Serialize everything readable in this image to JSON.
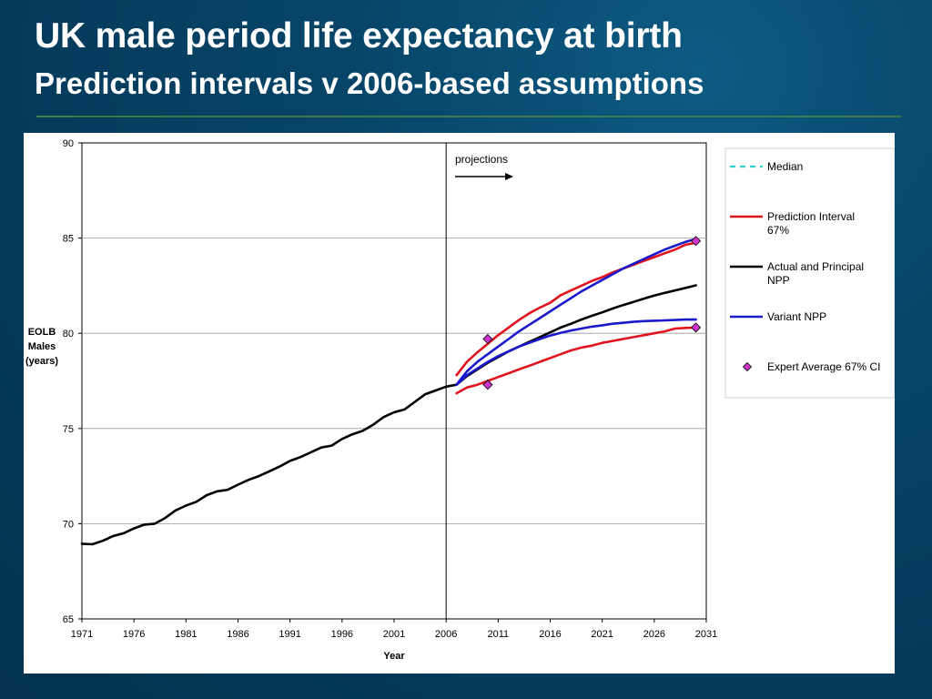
{
  "slide": {
    "title": "UK male period life expectancy at birth",
    "subtitle": "Prediction intervals v 2006-based assumptions"
  },
  "chart_data": {
    "type": "line",
    "xlabel": "Year",
    "ylabel": [
      "EOLB",
      "Males",
      "(years)"
    ],
    "xlim": [
      1971,
      2031
    ],
    "ylim": [
      65,
      90
    ],
    "x_ticks": [
      "1971",
      "1976",
      "1981",
      "1986",
      "1991",
      "1996",
      "2001",
      "2006",
      "2011",
      "2016",
      "2021",
      "2026",
      "2031"
    ],
    "y_ticks": [
      "65",
      "70",
      "75",
      "80",
      "85",
      "90"
    ],
    "grid": "horizontal",
    "divider_year": 2006,
    "annotation": "projections",
    "legend_position": "right",
    "legend": [
      {
        "label": "Median",
        "style": "dashed",
        "color": "#33cccc"
      },
      {
        "label": "Prediction Interval 67%",
        "style": "solid",
        "color": "#e0141e"
      },
      {
        "label": "Actual and Principal NPP",
        "style": "solid",
        "color": "#000000"
      },
      {
        "label": "Variant NPP",
        "style": "solid",
        "color": "#1a1acc"
      },
      {
        "label": "Expert Average 67% CI",
        "style": "marker",
        "color": "#cc33cc"
      }
    ],
    "series": [
      {
        "name": "Actual and Principal NPP",
        "color": "#000000",
        "x": [
          1971,
          1972,
          1973,
          1974,
          1975,
          1976,
          1977,
          1978,
          1979,
          1980,
          1981,
          1982,
          1983,
          1984,
          1985,
          1986,
          1987,
          1988,
          1989,
          1990,
          1991,
          1992,
          1993,
          1994,
          1995,
          1996,
          1997,
          1998,
          1999,
          2000,
          2001,
          2002,
          2003,
          2004,
          2005,
          2006,
          2007,
          2008,
          2009,
          2010,
          2011,
          2012,
          2013,
          2014,
          2015,
          2016,
          2017,
          2018,
          2019,
          2020,
          2021,
          2022,
          2023,
          2024,
          2025,
          2026,
          2027,
          2028,
          2029,
          2030
        ],
        "y": [
          68.95,
          68.92,
          69.1,
          69.35,
          69.5,
          69.75,
          69.95,
          70.0,
          70.3,
          70.7,
          70.95,
          71.15,
          71.5,
          71.7,
          71.78,
          72.05,
          72.3,
          72.5,
          72.75,
          73.0,
          73.3,
          73.5,
          73.75,
          74.0,
          74.1,
          74.45,
          74.7,
          74.88,
          75.2,
          75.6,
          75.85,
          76.0,
          76.4,
          76.8,
          77.0,
          77.2,
          77.3,
          77.75,
          78.1,
          78.45,
          78.75,
          79.05,
          79.3,
          79.55,
          79.8,
          80.05,
          80.3,
          80.5,
          80.72,
          80.92,
          81.1,
          81.3,
          81.48,
          81.65,
          81.82,
          81.98,
          82.12,
          82.25,
          82.38,
          82.52
        ]
      },
      {
        "name": "Prediction Interval 67% (upper)",
        "color": "#e0141e",
        "x": [
          2007,
          2008,
          2009,
          2010,
          2011,
          2012,
          2013,
          2014,
          2015,
          2016,
          2017,
          2018,
          2019,
          2020,
          2021,
          2022,
          2023,
          2024,
          2025,
          2026,
          2027,
          2028,
          2029,
          2030
        ],
        "y": [
          77.8,
          78.5,
          79.0,
          79.45,
          79.9,
          80.3,
          80.7,
          81.05,
          81.35,
          81.6,
          82.0,
          82.25,
          82.5,
          82.75,
          82.95,
          83.2,
          83.4,
          83.6,
          83.8,
          84.0,
          84.2,
          84.4,
          84.65,
          84.75
        ]
      },
      {
        "name": "Prediction Interval 67% (lower)",
        "color": "#e0141e",
        "x": [
          2007,
          2008,
          2009,
          2010,
          2011,
          2012,
          2013,
          2014,
          2015,
          2016,
          2017,
          2018,
          2019,
          2020,
          2021,
          2022,
          2023,
          2024,
          2025,
          2026,
          2027,
          2028,
          2029,
          2030
        ],
        "y": [
          76.85,
          77.15,
          77.3,
          77.5,
          77.7,
          77.9,
          78.1,
          78.3,
          78.5,
          78.7,
          78.9,
          79.1,
          79.25,
          79.35,
          79.5,
          79.6,
          79.7,
          79.8,
          79.9,
          80.0,
          80.1,
          80.25,
          80.28,
          80.3
        ]
      },
      {
        "name": "Variant NPP (upper)",
        "color": "#1a1acc",
        "x": [
          2007,
          2008,
          2009,
          2010,
          2011,
          2012,
          2013,
          2014,
          2015,
          2016,
          2017,
          2018,
          2019,
          2020,
          2021,
          2022,
          2023,
          2024,
          2025,
          2026,
          2027,
          2028,
          2029,
          2030
        ],
        "y": [
          77.3,
          78.0,
          78.5,
          78.9,
          79.3,
          79.7,
          80.1,
          80.45,
          80.8,
          81.15,
          81.5,
          81.85,
          82.2,
          82.5,
          82.8,
          83.1,
          83.4,
          83.65,
          83.9,
          84.15,
          84.4,
          84.6,
          84.8,
          84.95
        ]
      },
      {
        "name": "Variant NPP (lower)",
        "color": "#1a1acc",
        "x": [
          2007,
          2008,
          2009,
          2010,
          2011,
          2012,
          2013,
          2014,
          2015,
          2016,
          2017,
          2018,
          2019,
          2020,
          2021,
          2022,
          2023,
          2024,
          2025,
          2026,
          2027,
          2028,
          2029,
          2030
        ],
        "y": [
          77.3,
          77.8,
          78.15,
          78.5,
          78.8,
          79.05,
          79.3,
          79.5,
          79.7,
          79.88,
          80.02,
          80.15,
          80.25,
          80.35,
          80.42,
          80.5,
          80.55,
          80.6,
          80.64,
          80.66,
          80.68,
          80.7,
          80.72,
          80.72
        ]
      }
    ],
    "expert_markers": [
      {
        "x": 2010,
        "y": 79.7
      },
      {
        "x": 2010,
        "y": 77.3
      },
      {
        "x": 2030,
        "y": 84.85
      },
      {
        "x": 2030,
        "y": 80.3
      }
    ]
  }
}
